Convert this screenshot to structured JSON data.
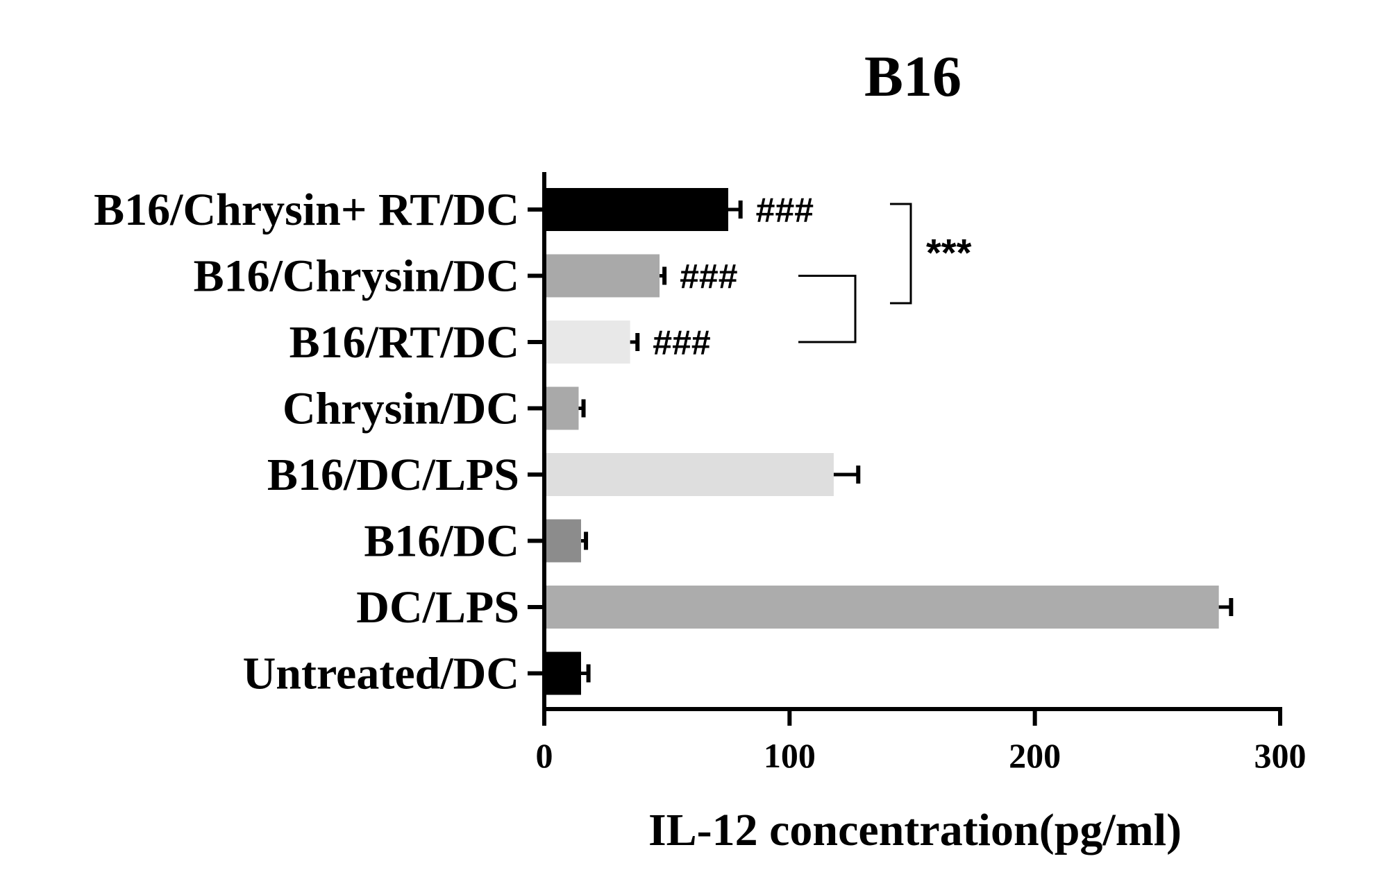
{
  "chart_data": {
    "type": "bar",
    "orientation": "horizontal",
    "title": "B16",
    "xlabel": "IL-12 concentration(pg/ml)",
    "ylabel": "",
    "xlim": [
      0,
      300
    ],
    "xticks": [
      "0",
      "100",
      "200",
      "300"
    ],
    "grid": false,
    "categories": [
      "B16/Chrysin+ RT/DC",
      "B16/Chrysin/DC",
      "B16/RT/DC",
      "Chrysin/DC",
      "B16/DC/LPS",
      "B16/DC",
      "DC/LPS",
      "Untreated/DC"
    ],
    "values": [
      75,
      47,
      35,
      14,
      118,
      15,
      275,
      15
    ],
    "errors": [
      5,
      2,
      3,
      2,
      10,
      2,
      5,
      3
    ],
    "colors": [
      "#000000",
      "#a9a9a9",
      "#e8e8e8",
      "#a9a9a9",
      "#dedede",
      "#8c8c8c",
      "#acacac",
      "#000000"
    ],
    "annotations": [
      "###",
      "###",
      "###",
      "",
      "",
      "",
      "",
      ""
    ],
    "brackets": [
      {
        "from": "B16/Chrysin+ RT/DC",
        "to": "B16/RT/DC",
        "label": "***"
      },
      {
        "from": "B16/Chrysin/DC",
        "to": "B16/RT/DC",
        "label": ""
      }
    ]
  }
}
